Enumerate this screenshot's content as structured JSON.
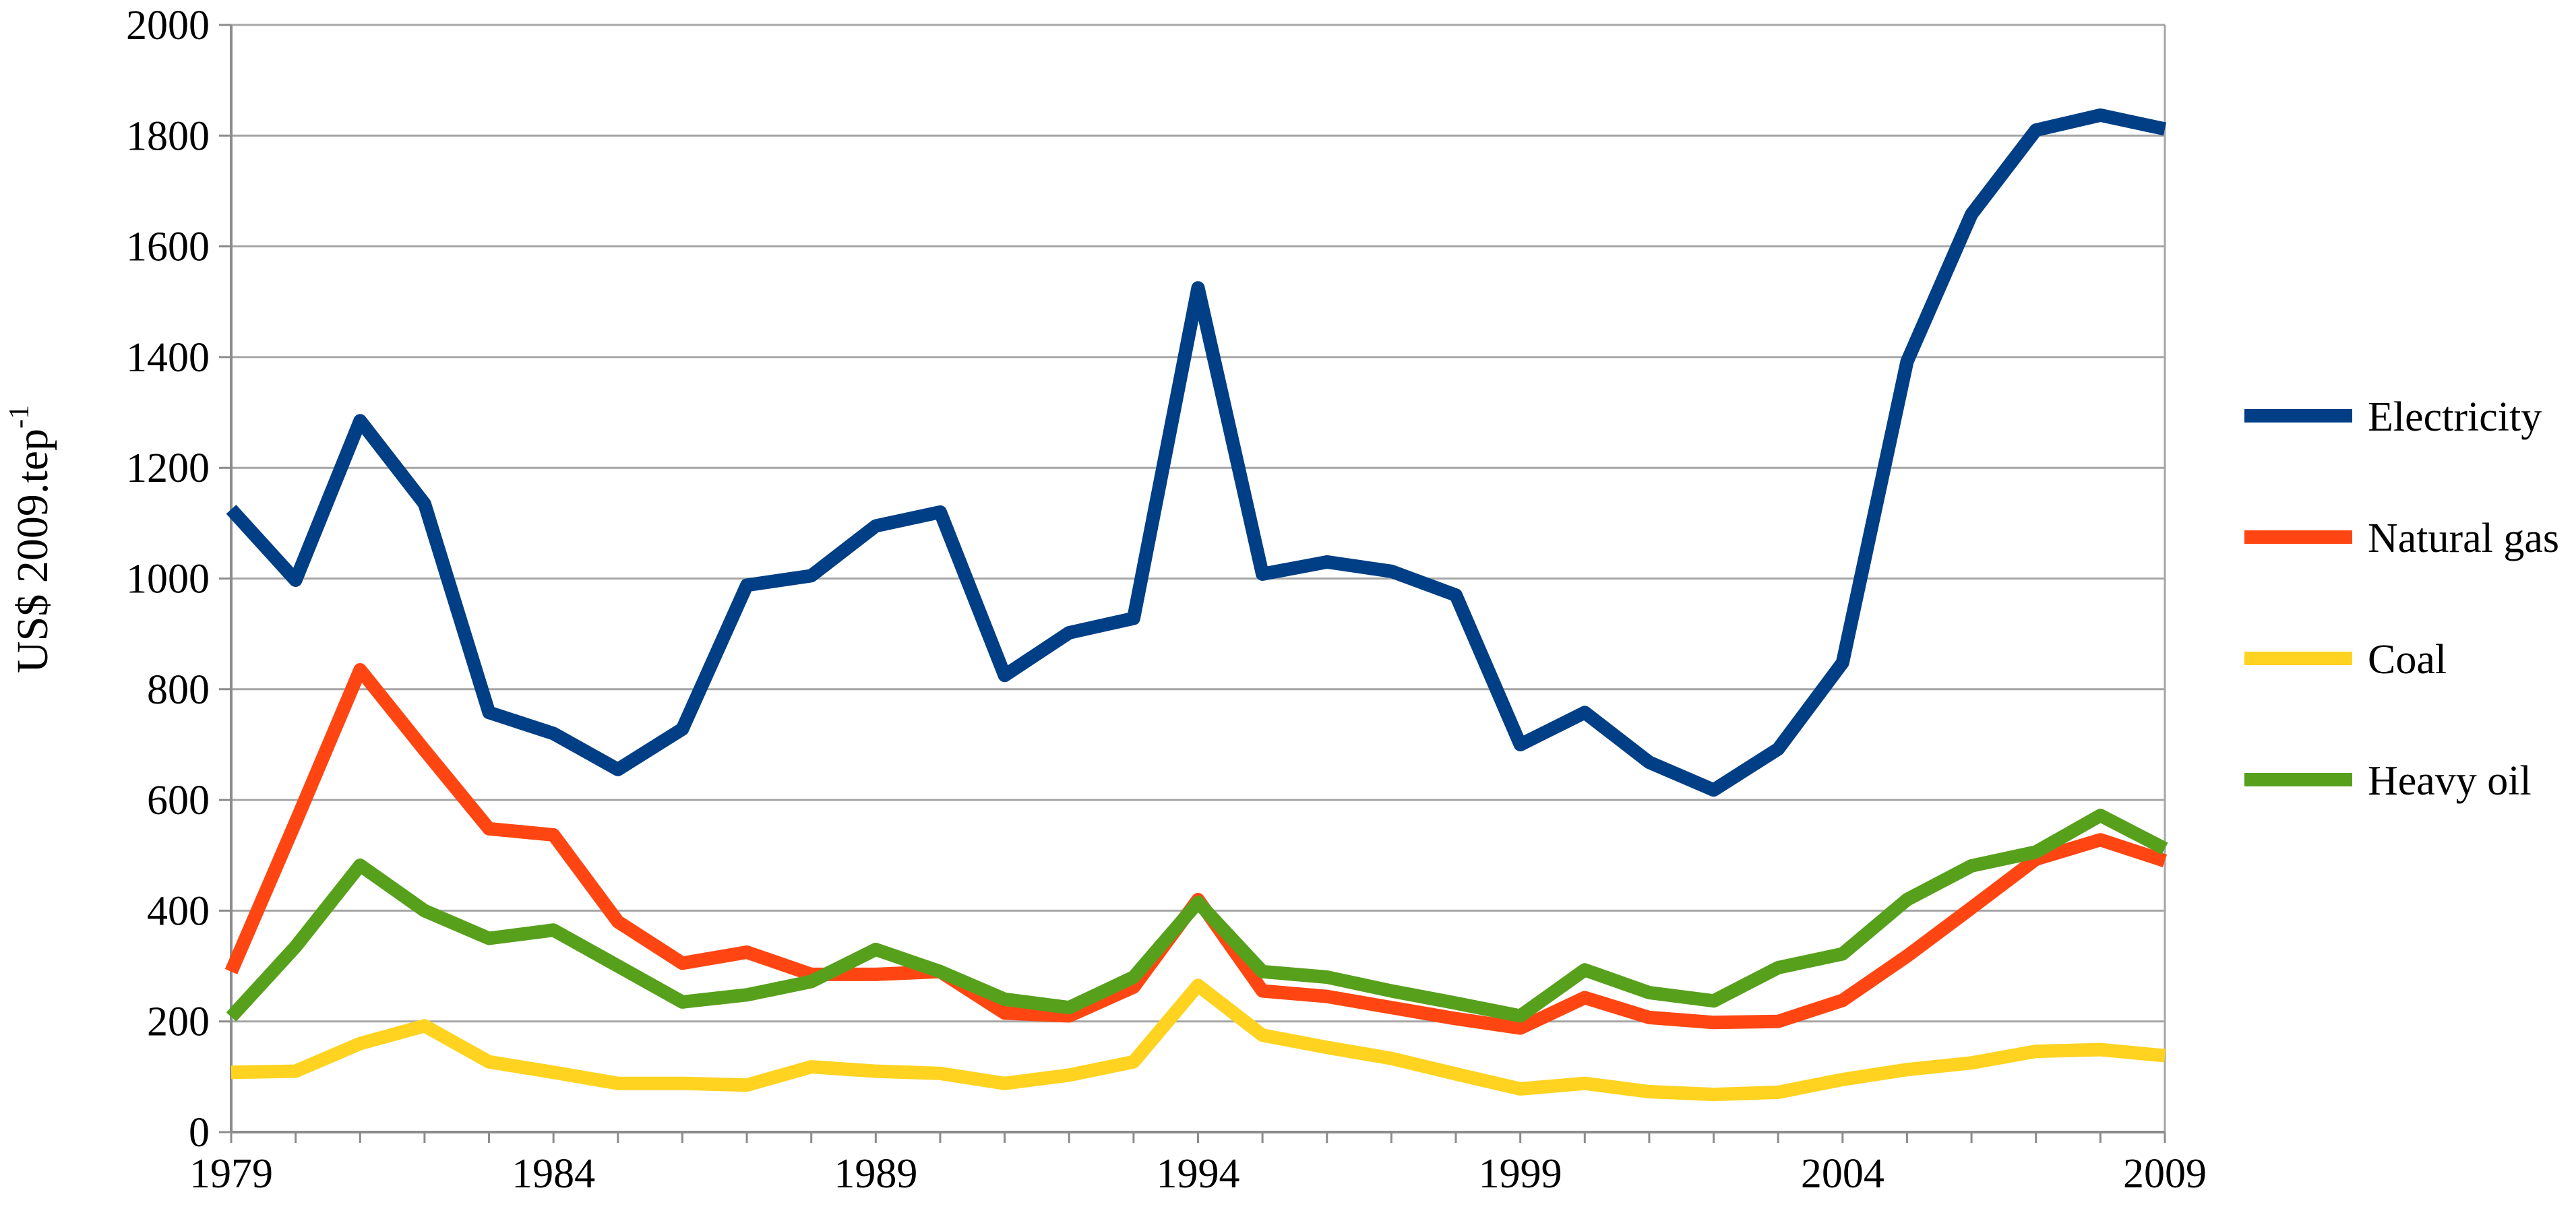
{
  "chart_data": {
    "type": "line",
    "title": "",
    "xlabel": "",
    "ylabel": "US$ 2009.tep",
    "ylabel_superscript": "-1",
    "x": [
      1979,
      1980,
      1981,
      1982,
      1983,
      1984,
      1985,
      1986,
      1987,
      1988,
      1989,
      1990,
      1991,
      1992,
      1993,
      1994,
      1995,
      1996,
      1997,
      1998,
      1999,
      2000,
      2001,
      2002,
      2003,
      2004,
      2005,
      2006,
      2007,
      2008,
      2009
    ],
    "xlim": [
      1979,
      2009
    ],
    "ylim": [
      0,
      2000
    ],
    "x_ticks": [
      1979,
      1984,
      1989,
      1994,
      1999,
      2004,
      2009
    ],
    "y_ticks": [
      0,
      200,
      400,
      600,
      800,
      1000,
      1200,
      1400,
      1600,
      1800,
      2000
    ],
    "grid": true,
    "legend_position": "right",
    "series": [
      {
        "name": "Electricity",
        "color": "#003f86",
        "values": [
          1125,
          997,
          1285,
          1135,
          758,
          720,
          655,
          728,
          988,
          1005,
          1095,
          1120,
          825,
          902,
          928,
          1525,
          1008,
          1030,
          1013,
          970,
          700,
          758,
          668,
          618,
          692,
          848,
          1392,
          1658,
          1810,
          1837,
          1812
        ]
      },
      {
        "name": "Natural gas",
        "color": "#ff4612",
        "values": [
          290,
          560,
          835,
          690,
          548,
          537,
          380,
          305,
          325,
          285,
          285,
          290,
          215,
          210,
          262,
          420,
          255,
          245,
          225,
          205,
          188,
          243,
          207,
          198,
          200,
          238,
          318,
          405,
          493,
          528,
          490
        ]
      },
      {
        "name": "Coal",
        "color": "#ffd320",
        "values": [
          108,
          110,
          160,
          192,
          127,
          108,
          88,
          88,
          85,
          118,
          110,
          106,
          88,
          103,
          127,
          265,
          175,
          153,
          133,
          105,
          78,
          88,
          73,
          68,
          72,
          95,
          113,
          125,
          146,
          149,
          138
        ]
      },
      {
        "name": "Heavy oil",
        "color": "#57a01c",
        "values": [
          208,
          335,
          482,
          400,
          350,
          365,
          300,
          235,
          248,
          272,
          330,
          290,
          240,
          225,
          280,
          415,
          290,
          280,
          255,
          233,
          210,
          293,
          252,
          237,
          297,
          322,
          420,
          481,
          506,
          572,
          512
        ]
      }
    ]
  }
}
